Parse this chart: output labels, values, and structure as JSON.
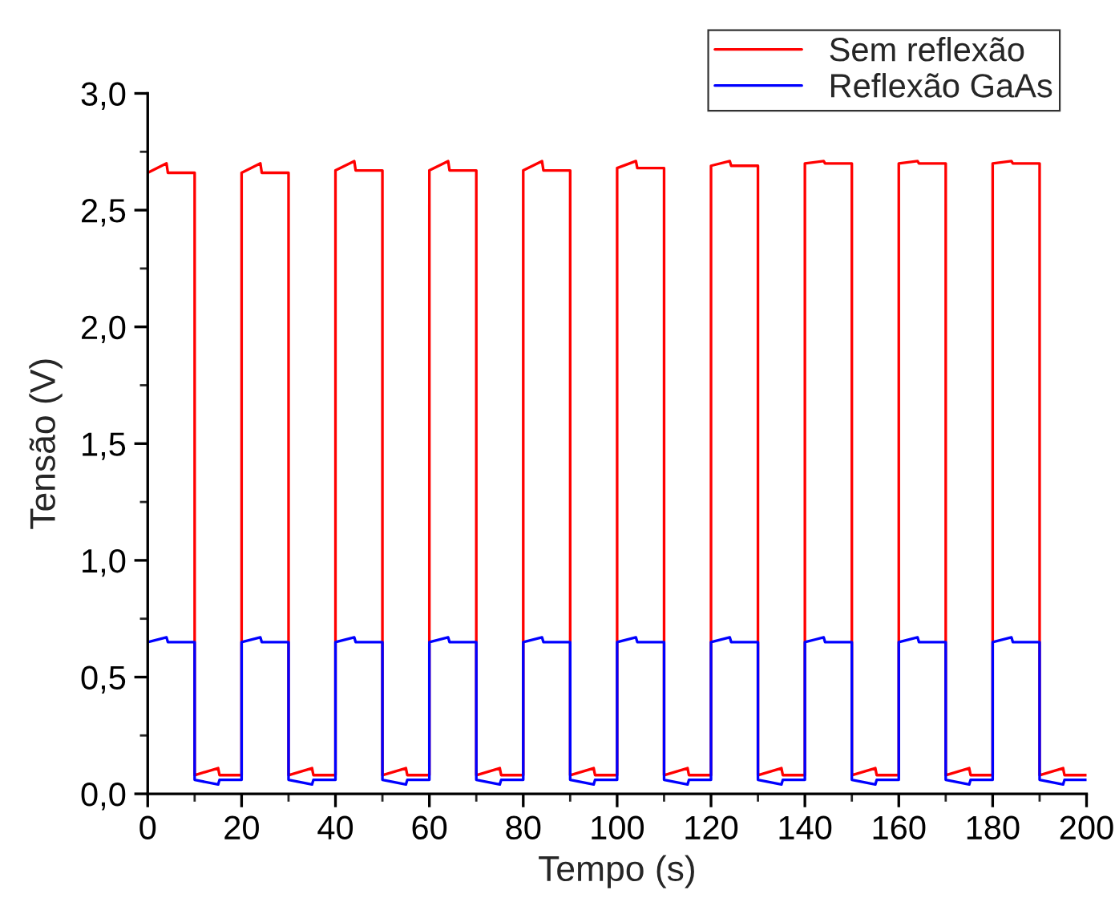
{
  "chart_data": {
    "type": "line",
    "xlabel": "Tempo (s)",
    "ylabel": "Tensão (V)",
    "x": [
      0,
      4,
      4.3,
      10,
      10,
      15,
      15.3,
      20,
      20,
      24,
      24.3,
      30,
      30,
      35,
      35.3,
      40,
      40,
      44,
      44.3,
      50,
      50,
      55,
      55.3,
      60,
      60,
      64,
      64.3,
      70,
      70,
      75,
      75.3,
      80,
      80,
      84,
      84.3,
      90,
      90,
      95,
      95.3,
      100,
      100,
      104,
      104.3,
      110,
      110,
      115,
      115.3,
      120,
      120,
      124,
      124.3,
      130,
      130,
      135,
      135.3,
      140,
      140,
      144,
      144.3,
      150,
      150,
      155,
      155.3,
      160,
      160,
      164,
      164.3,
      170,
      170,
      175,
      175.3,
      180,
      180,
      184,
      184.3,
      190,
      190,
      195,
      195.3,
      200
    ],
    "series": [
      {
        "name": "Sem reflexão",
        "color": "#ff0000",
        "values": [
          2.66,
          2.7,
          2.66,
          2.66,
          0.08,
          0.11,
          0.08,
          0.08,
          2.66,
          2.7,
          2.66,
          2.66,
          0.08,
          0.11,
          0.08,
          0.08,
          2.67,
          2.71,
          2.67,
          2.67,
          0.08,
          0.11,
          0.08,
          0.08,
          2.67,
          2.71,
          2.67,
          2.67,
          0.08,
          0.11,
          0.08,
          0.08,
          2.67,
          2.71,
          2.67,
          2.67,
          0.08,
          0.11,
          0.08,
          0.08,
          2.68,
          2.71,
          2.68,
          2.68,
          0.08,
          0.11,
          0.08,
          0.08,
          2.69,
          2.71,
          2.69,
          2.69,
          0.08,
          0.11,
          0.08,
          0.08,
          2.7,
          2.71,
          2.7,
          2.7,
          0.08,
          0.11,
          0.08,
          0.08,
          2.7,
          2.71,
          2.7,
          2.7,
          0.08,
          0.11,
          0.08,
          0.08,
          2.7,
          2.71,
          2.7,
          2.7,
          0.08,
          0.11,
          0.08,
          0.08
        ]
      },
      {
        "name": "Reflexão GaAs",
        "color": "#0000ff",
        "values": [
          0.65,
          0.67,
          0.65,
          0.65,
          0.06,
          0.04,
          0.06,
          0.06,
          0.65,
          0.67,
          0.65,
          0.65,
          0.06,
          0.04,
          0.06,
          0.06,
          0.65,
          0.67,
          0.65,
          0.65,
          0.06,
          0.04,
          0.06,
          0.06,
          0.65,
          0.67,
          0.65,
          0.65,
          0.06,
          0.04,
          0.06,
          0.06,
          0.65,
          0.67,
          0.65,
          0.65,
          0.06,
          0.04,
          0.06,
          0.06,
          0.65,
          0.67,
          0.65,
          0.65,
          0.06,
          0.04,
          0.06,
          0.06,
          0.65,
          0.67,
          0.65,
          0.65,
          0.06,
          0.04,
          0.06,
          0.06,
          0.65,
          0.67,
          0.65,
          0.65,
          0.06,
          0.04,
          0.06,
          0.06,
          0.65,
          0.67,
          0.65,
          0.65,
          0.06,
          0.04,
          0.06,
          0.06,
          0.65,
          0.67,
          0.65,
          0.65,
          0.06,
          0.04,
          0.06,
          0.06
        ]
      }
    ],
    "xlim": [
      0,
      200
    ],
    "ylim": [
      0,
      3.0
    ],
    "xticks": [
      0,
      20,
      40,
      60,
      80,
      100,
      120,
      140,
      160,
      180,
      200
    ],
    "yticks": [
      {
        "value": 0,
        "label": "0,0"
      },
      {
        "value": 0.5,
        "label": "0,5"
      },
      {
        "value": 1.0,
        "label": "1,0"
      },
      {
        "value": 1.5,
        "label": "1,5"
      },
      {
        "value": 2.0,
        "label": "2,0"
      },
      {
        "value": 2.5,
        "label": "2,5"
      },
      {
        "value": 3.0,
        "label": "3,0"
      }
    ],
    "legend": "top right",
    "grid": false,
    "marker": "none",
    "line_style": "solid"
  }
}
